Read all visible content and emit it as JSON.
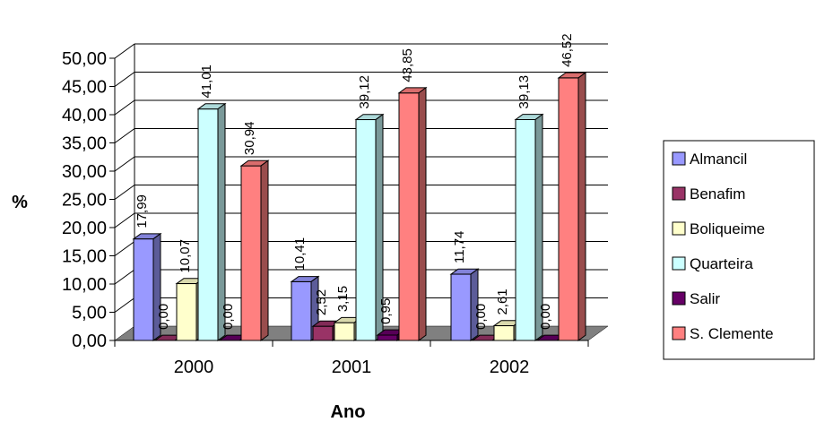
{
  "chart_data": {
    "type": "bar",
    "xlabel": "Ano",
    "ylabel": "%",
    "ylim": [
      0,
      50
    ],
    "yticks": [
      "0,00",
      "5,00",
      "10,00",
      "15,00",
      "20,00",
      "25,00",
      "30,00",
      "35,00",
      "40,00",
      "45,00",
      "50,00"
    ],
    "grid": true,
    "legend_position": "right",
    "categories": [
      "2000",
      "2001",
      "2002"
    ],
    "series": [
      {
        "name": "Almancil",
        "color": "#9999FF",
        "values": [
          17.99,
          10.41,
          11.74
        ],
        "labels": [
          "17,99",
          "10,41",
          "11,74"
        ]
      },
      {
        "name": "Benafim",
        "color": "#993366",
        "values": [
          0.0,
          2.52,
          0.0
        ],
        "labels": [
          "0,00",
          "2,52",
          "0,00"
        ]
      },
      {
        "name": "Boliqueime",
        "color": "#FFFFCC",
        "values": [
          10.07,
          3.15,
          2.61
        ],
        "labels": [
          "10,07",
          "3,15",
          "2,61"
        ]
      },
      {
        "name": "Quarteira",
        "color": "#CCFFFF",
        "values": [
          41.01,
          39.12,
          39.13
        ],
        "labels": [
          "41,01",
          "39,12",
          "39,13"
        ]
      },
      {
        "name": "Salir",
        "color": "#660066",
        "values": [
          0.0,
          0.95,
          0.0
        ],
        "labels": [
          "0,00",
          "0,95",
          "0,00"
        ]
      },
      {
        "name": "S. Clemente",
        "color": "#FF8080",
        "values": [
          30.94,
          43.85,
          46.52
        ],
        "labels": [
          "30,94",
          "43,85",
          "46,52"
        ]
      }
    ]
  }
}
